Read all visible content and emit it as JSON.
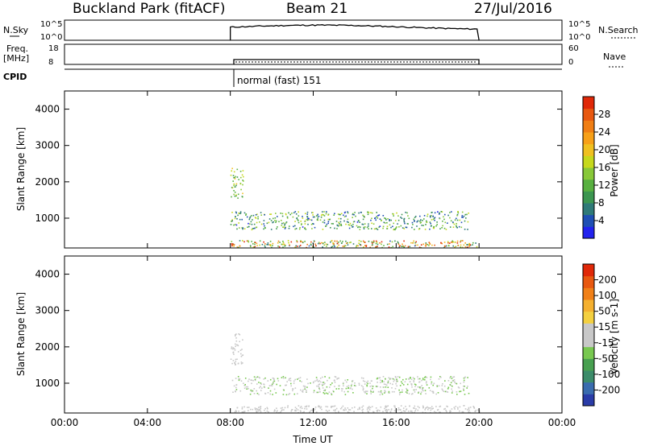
{
  "header": {
    "station": "Buckland Park (fitACF)",
    "beam": "Beam 21",
    "date": "27/Jul/2016"
  },
  "side_labels": {
    "nsky": "N.Sky",
    "nsearch": "N.Search",
    "freq": "Freq.",
    "freq_unit": "[MHz]",
    "nave": "Nave",
    "cpid": "CPID",
    "cpid_value": "normal (fast) 151"
  },
  "strip_ticks": {
    "noise_top": "10^5",
    "noise_bottom": "10^0",
    "freq_top": "18",
    "freq_bottom": "8",
    "nave_top": "60",
    "nave_bottom": "0"
  },
  "chart_data": [
    {
      "type": "heatmap",
      "panel": "power",
      "title": "Power",
      "colorbar_label": "Power [dB]",
      "colorbar_ticks": [
        "4",
        "8",
        "12",
        "16",
        "20",
        "24",
        "28"
      ],
      "colorbar_colors": [
        "#2222ee",
        "#1f4fb4",
        "#2f7a78",
        "#3c9650",
        "#58b040",
        "#88c838",
        "#c6d81c",
        "#f0c020",
        "#f7a018",
        "#f07e14",
        "#e85810",
        "#e02808"
      ],
      "ylabel": "Slant Range [km]",
      "ylim": [
        180,
        4500
      ],
      "yticks": [
        "1000",
        "2000",
        "3000",
        "4000"
      ],
      "xlim_hours": [
        0,
        24
      ],
      "data_interval_hours": [
        8.0,
        20.0
      ],
      "echo_regions": [
        {
          "t_start": 8.0,
          "t_end": 20.0,
          "range_from_km": 200,
          "range_to_km": 400,
          "dB_min": 6,
          "dB_max": 28
        },
        {
          "t_start": 8.0,
          "t_end": 19.5,
          "range_from_km": 700,
          "range_to_km": 1200,
          "dB_min": 4,
          "dB_max": 16
        },
        {
          "t_start": 8.0,
          "t_end": 8.6,
          "range_from_km": 1500,
          "range_to_km": 2400,
          "dB_min": 8,
          "dB_max": 18
        }
      ]
    },
    {
      "type": "heatmap",
      "panel": "velocity",
      "title": "Velocity",
      "colorbar_label": "Velocity [m s-1]",
      "colorbar_ticks": [
        "200",
        "100",
        "50",
        "15",
        "-15",
        "-50",
        "-100",
        "-200"
      ],
      "colorbar_colors": [
        "#2a3ca8",
        "#3a6cae",
        "#3c8c6a",
        "#48a050",
        "#78c850",
        "#c8c8c8",
        "#c8c8c8",
        "#f4d040",
        "#f4b030",
        "#f08018",
        "#e85810",
        "#e02808"
      ],
      "ylabel": "Slant Range [km]",
      "ylim": [
        180,
        4500
      ],
      "yticks": [
        "1000",
        "2000",
        "3000",
        "4000"
      ],
      "xlabel": "Time UT",
      "xticks": [
        "00:00",
        "04:00",
        "08:00",
        "12:00",
        "16:00",
        "20:00",
        "00:00"
      ],
      "xlim_hours": [
        0,
        24
      ],
      "data_interval_hours": [
        8.0,
        20.0
      ],
      "echo_regions": [
        {
          "t_start": 8.0,
          "t_end": 20.0,
          "range_from_km": 200,
          "range_to_km": 400,
          "velocity_min": -50,
          "velocity_max": -15
        },
        {
          "t_start": 8.0,
          "t_end": 19.5,
          "range_from_km": 700,
          "range_to_km": 1200,
          "velocity_min": -50,
          "velocity_max": 50
        },
        {
          "t_start": 8.0,
          "t_end": 8.6,
          "range_from_km": 1500,
          "range_to_km": 2400,
          "velocity_min": -50,
          "velocity_max": 15
        }
      ]
    }
  ]
}
